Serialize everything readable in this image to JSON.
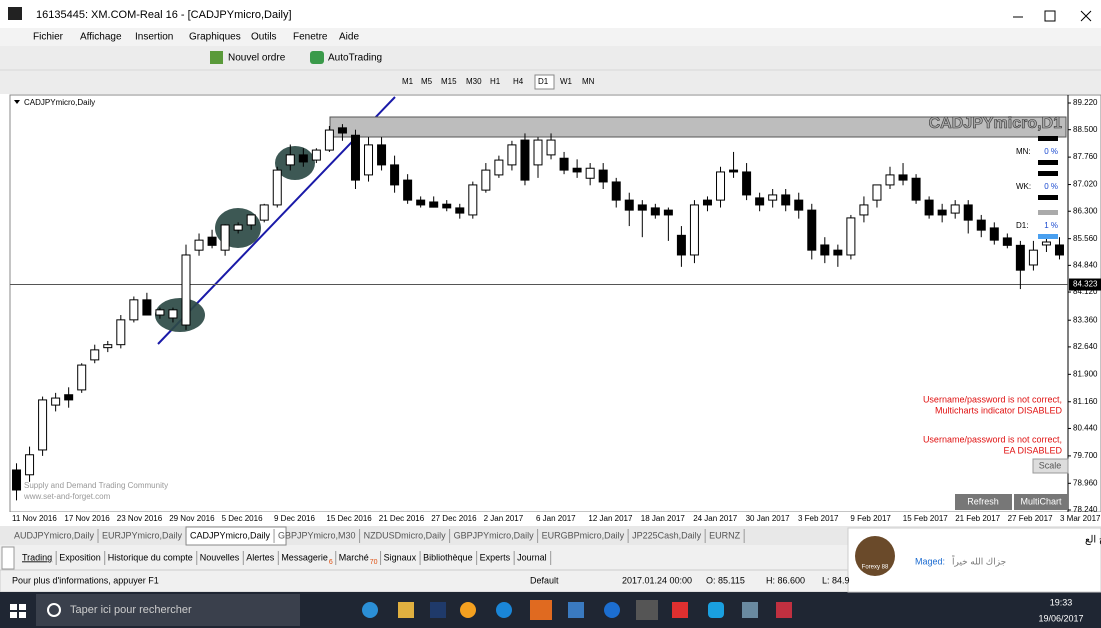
{
  "window": {
    "title": "16135445: XM.COM-Real 16 - [CADJPYmicro,Daily]"
  },
  "menu": [
    "Fichier",
    "Affichage",
    "Insertion",
    "Graphiques",
    "Outils",
    "Fenetre",
    "Aide"
  ],
  "toolbar": {
    "new_order": "Nouvel ordre",
    "autotrading": "AutoTrading",
    "timeframes": [
      "M1",
      "M5",
      "M15",
      "M30",
      "H1",
      "H4",
      "D1",
      "W1",
      "MN"
    ]
  },
  "chart_data": {
    "type": "candlestick",
    "title": "CADJPYmicro,Daily",
    "watermark": "CADJPYmicro,D1",
    "ylim": [
      78.24,
      89.22
    ],
    "yticks": [
      {
        "value": 89.22,
        "label": "89.220"
      },
      {
        "value": 88.5,
        "label": "88.500"
      },
      {
        "value": 87.76,
        "label": "87.760"
      },
      {
        "value": 87.02,
        "label": "87.020"
      },
      {
        "value": 86.3,
        "label": "86.300"
      },
      {
        "value": 85.56,
        "label": "85.560"
      },
      {
        "value": 84.84,
        "label": "84.840"
      },
      {
        "value": 84.12,
        "label": "84.120"
      },
      {
        "value": 83.36,
        "label": "83.360"
      },
      {
        "value": 82.64,
        "label": "82.640"
      },
      {
        "value": 81.9,
        "label": "81.900"
      },
      {
        "value": 81.16,
        "label": "81.160"
      },
      {
        "value": 80.44,
        "label": "80.440"
      },
      {
        "value": 79.7,
        "label": "79.700"
      },
      {
        "value": 78.96,
        "label": "78.960"
      },
      {
        "value": 78.24,
        "label": "78.240"
      }
    ],
    "current_price": {
      "value": 84.323,
      "label": "84.323"
    },
    "x_labels": [
      "11 Nov 2016",
      "17 Nov 2016",
      "23 Nov 2016",
      "29 Nov 2016",
      "5 Dec 2016",
      "9 Dec 2016",
      "15 Dec 2016",
      "21 Dec 2016",
      "27 Dec 2016",
      "2 Jan 2017",
      "6 Jan 2017",
      "12 Jan 2017",
      "18 Jan 2017",
      "24 Jan 2017",
      "30 Jan 2017",
      "3 Feb 2017",
      "9 Feb 2017",
      "15 Feb 2017",
      "21 Feb 2017",
      "27 Feb 2017",
      "3 Mar 2017"
    ],
    "up_color": "#ffffff",
    "down_color": "#000000",
    "candles": [
      [
        79.32,
        79.5,
        78.5,
        78.78
      ],
      [
        79.19,
        79.95,
        79.0,
        79.73
      ],
      [
        79.86,
        81.3,
        79.7,
        81.21
      ],
      [
        81.07,
        81.4,
        80.9,
        81.26
      ],
      [
        81.35,
        81.55,
        81.0,
        81.21
      ],
      [
        81.48,
        82.2,
        81.4,
        82.15
      ],
      [
        82.29,
        82.7,
        82.2,
        82.56
      ],
      [
        82.62,
        82.8,
        82.5,
        82.7
      ],
      [
        82.7,
        83.5,
        82.6,
        83.37
      ],
      [
        83.37,
        84.0,
        83.3,
        83.91
      ],
      [
        83.91,
        84.1,
        83.5,
        83.5
      ],
      [
        83.5,
        83.7,
        83.4,
        83.64
      ],
      [
        83.42,
        83.7,
        83.3,
        83.64
      ],
      [
        83.23,
        85.4,
        83.1,
        85.12
      ],
      [
        85.25,
        85.7,
        85.1,
        85.52
      ],
      [
        85.6,
        85.8,
        85.3,
        85.38
      ],
      [
        85.25,
        85.95,
        85.1,
        85.93
      ],
      [
        85.79,
        86.0,
        85.7,
        85.93
      ],
      [
        85.93,
        86.2,
        85.8,
        86.2
      ],
      [
        86.06,
        86.5,
        86.0,
        86.47
      ],
      [
        86.47,
        87.5,
        86.4,
        87.41
      ],
      [
        87.55,
        88.1,
        87.4,
        87.82
      ],
      [
        87.82,
        88.0,
        87.5,
        87.63
      ],
      [
        87.68,
        88.0,
        87.6,
        87.95
      ],
      [
        87.95,
        88.6,
        87.9,
        88.49
      ],
      [
        88.55,
        88.65,
        88.2,
        88.41
      ],
      [
        88.35,
        88.5,
        86.9,
        87.14
      ],
      [
        87.28,
        88.3,
        87.1,
        88.09
      ],
      [
        88.09,
        88.3,
        87.4,
        87.55
      ],
      [
        87.55,
        87.8,
        86.8,
        87.01
      ],
      [
        87.14,
        87.3,
        86.5,
        86.6
      ],
      [
        86.6,
        86.7,
        86.4,
        86.47
      ],
      [
        86.55,
        86.7,
        86.4,
        86.41
      ],
      [
        86.49,
        86.6,
        86.3,
        86.39
      ],
      [
        86.39,
        86.5,
        86.1,
        86.25
      ],
      [
        86.2,
        87.1,
        86.1,
        87.01
      ],
      [
        86.87,
        87.6,
        86.8,
        87.41
      ],
      [
        87.28,
        87.8,
        87.2,
        87.68
      ],
      [
        87.55,
        88.2,
        87.4,
        88.09
      ],
      [
        88.22,
        88.4,
        87.0,
        87.14
      ],
      [
        87.55,
        88.3,
        87.2,
        88.22
      ],
      [
        87.82,
        88.4,
        87.7,
        88.22
      ],
      [
        87.73,
        87.9,
        87.3,
        87.41
      ],
      [
        87.46,
        87.7,
        87.2,
        87.36
      ],
      [
        87.19,
        87.6,
        87.0,
        87.46
      ],
      [
        87.41,
        87.6,
        86.9,
        87.09
      ],
      [
        87.09,
        87.2,
        86.4,
        86.6
      ],
      [
        86.6,
        86.8,
        85.9,
        86.33
      ],
      [
        86.47,
        86.6,
        85.6,
        86.33
      ],
      [
        86.39,
        86.5,
        86.1,
        86.2
      ],
      [
        86.33,
        86.4,
        85.5,
        86.2
      ],
      [
        85.65,
        85.9,
        84.8,
        85.12
      ],
      [
        85.12,
        86.6,
        84.9,
        86.47
      ],
      [
        86.6,
        86.7,
        86.3,
        86.47
      ],
      [
        86.6,
        87.5,
        86.4,
        87.36
      ],
      [
        87.41,
        87.9,
        87.2,
        87.36
      ],
      [
        87.36,
        87.6,
        86.6,
        86.74
      ],
      [
        86.66,
        86.8,
        86.3,
        86.47
      ],
      [
        86.6,
        86.9,
        86.4,
        86.74
      ],
      [
        86.74,
        86.9,
        86.3,
        86.47
      ],
      [
        86.6,
        86.8,
        86.1,
        86.33
      ],
      [
        86.33,
        86.5,
        85.0,
        85.25
      ],
      [
        85.39,
        85.6,
        84.9,
        85.12
      ],
      [
        85.25,
        85.4,
        84.8,
        85.12
      ],
      [
        85.12,
        86.2,
        85.0,
        86.12
      ],
      [
        86.2,
        86.7,
        86.0,
        86.47
      ],
      [
        86.6,
        87.0,
        86.4,
        87.01
      ],
      [
        87.01,
        87.5,
        86.9,
        87.28
      ],
      [
        87.28,
        87.6,
        87.0,
        87.14
      ],
      [
        87.19,
        87.3,
        86.5,
        86.6
      ],
      [
        86.6,
        86.7,
        86.1,
        86.2
      ],
      [
        86.33,
        86.5,
        86.0,
        86.2
      ],
      [
        86.25,
        86.6,
        86.1,
        86.47
      ],
      [
        86.47,
        86.6,
        85.7,
        86.06
      ],
      [
        86.06,
        86.2,
        85.6,
        85.79
      ],
      [
        85.85,
        86.0,
        85.4,
        85.52
      ],
      [
        85.58,
        85.7,
        85.3,
        85.38
      ],
      [
        85.38,
        85.5,
        84.2,
        84.71
      ],
      [
        84.85,
        85.5,
        84.7,
        85.25
      ],
      [
        85.39,
        85.6,
        85.2,
        85.47
      ],
      [
        85.39,
        85.6,
        85.0,
        85.12
      ]
    ],
    "strength": [
      {
        "label": "MN:",
        "value": "0 %"
      },
      {
        "label": "WK:",
        "value": "0 %"
      },
      {
        "label": "D1:",
        "value": "1 %"
      }
    ],
    "messages": [
      "Username/password is not correct,",
      "Multicharts indicator DISABLED",
      "Username/password is not correct,",
      "EA DISABLED"
    ],
    "community": [
      "Supply and Demand Trading Community",
      "www.set-and-forget.com"
    ],
    "buttons": {
      "scale": "Scale",
      "refresh": "Refresh",
      "multichart": "MultiChart"
    }
  },
  "chart_tabs": [
    "AUDJPYmicro,Daily",
    "EURJPYmicro,Daily",
    "CADJPYmicro,Daily",
    "GBPJPYmicro,M30",
    "NZDUSDmicro,Daily",
    "GBPJPYmicro,Daily",
    "EURGBPmicro,Daily",
    "JP225Cash,Daily",
    "EURNZ"
  ],
  "terminal_tabs": [
    {
      "label": "Trading"
    },
    {
      "label": "Exposition"
    },
    {
      "label": "Historique du compte"
    },
    {
      "label": "Nouvelles"
    },
    {
      "label": "Alertes"
    },
    {
      "label": "Messagerie",
      "badge": 6
    },
    {
      "label": "Marché",
      "badge": 70
    },
    {
      "label": "Signaux"
    },
    {
      "label": "Bibliothèque"
    },
    {
      "label": "Experts"
    },
    {
      "label": "Journal"
    }
  ],
  "status": {
    "help": "Pour plus d'informations, appuyer F1",
    "profile": "Default",
    "time": "2017.01.24 00:00",
    "open": "O: 85.115",
    "high": "H: 86.600",
    "low": "L: 84.9"
  },
  "notification": {
    "title": "...ورشة العرض والطلب (أبو فالح الع",
    "sender": "Maged:",
    "message": "جزاك الله خيراً",
    "logo": "Forexy 88"
  },
  "taskbar": {
    "search": "Taper ici pour rechercher",
    "time": "19:33",
    "date": "19/06/2017"
  }
}
